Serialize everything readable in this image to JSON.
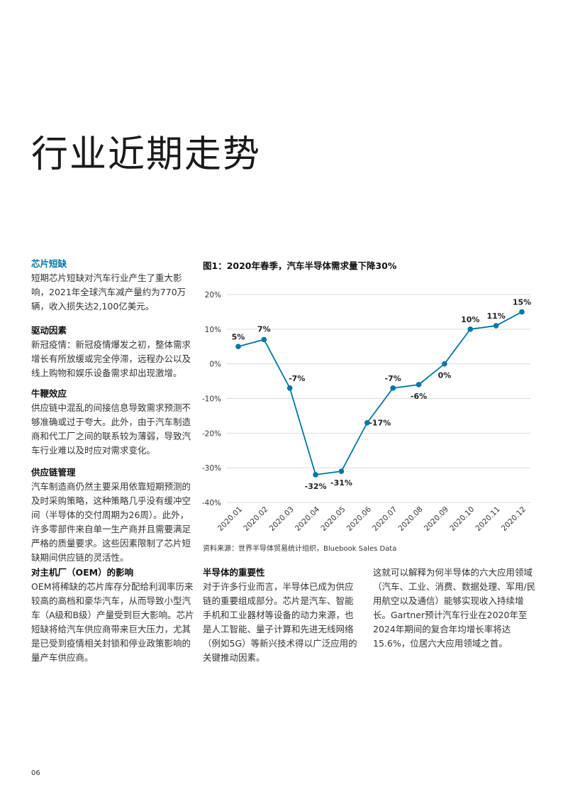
{
  "page": {
    "title": "行业近期走势",
    "page_number": "06"
  },
  "sections": {
    "chip_shortage": {
      "heading": "芯片短缺",
      "body": "短期芯片短缺对汽车行业产生了重大影响，2021年全球汽车减产量约为770万辆，收入损失达2,100亿美元。"
    },
    "drivers": {
      "heading": "驱动因素",
      "body": "新冠疫情：新冠疫情爆发之初，整体需求增长有所放缓或完全停滞，远程办公以及线上购物和娱乐设备需求却出现激增。"
    },
    "bullwhip": {
      "heading": "牛鞭效应",
      "body": "供应链中混乱的间接信息导致需求预测不够准确或过于夸大。此外，由于汽车制造商和代工厂之间的联系较为薄弱，导致汽车行业难以及时应对需求变化。"
    },
    "supply_chain": {
      "heading": "供应链管理",
      "body": "汽车制造商仍然主要采用依靠短期预测的及时采购策略，这种策略几乎没有缓冲空间（半导体的交付周期为26周）。此外，许多零部件来自单一生产商并且需要满足严格的质量要求。这些因素限制了芯片短缺期间供应链的灵活性。"
    },
    "oem_impact": {
      "heading": "对主机厂（OEM）的影响",
      "body": "OEM将稀缺的芯片库存分配给利润率历来较高的高档和豪华汽车，从而导致小型汽车（A级和B级）产量受到巨大影响。芯片短缺将给汽车供应商带来巨大压力，尤其是已受到疫情相关封锁和停业政策影响的量产车供应商。"
    },
    "importance": {
      "heading": "半导体的重要性",
      "body": "对于许多行业而言，半导体已成为供应链的重要组成部分。芯片是汽车、智能手机和工业器材等设备的动力来源，也是人工智能、量子计算和先进无线网络（例如5G）等新兴技术得以广泛应用的关键推动因素。"
    },
    "growth": {
      "body": "这就可以解释为何半导体的六大应用领域（汽车、工业、消费、数据处理、军用/民用航空以及通信）能够实现收入持续增长。Gartner预计汽车行业在2020年至2024年期间的复合年均增长率将达15.6%，位居六大应用领域之首。"
    }
  },
  "chart": {
    "title": "图1：2020年春季，汽车半导体需求量下降30%",
    "source": "资料来源：世界半导体贸易统计组织，Bluebook Sales Data"
  },
  "chart_data": {
    "type": "line",
    "title": "图1：2020年春季，汽车半导体需求量下降30%",
    "categories": [
      "2020.01",
      "2020.02",
      "2020.03",
      "2020.04",
      "2020.05",
      "2020.06",
      "2020.07",
      "2020.08",
      "2020.09",
      "2020.10",
      "2020.11",
      "2020.12"
    ],
    "values": [
      5,
      7,
      -7,
      -32,
      -31,
      -17,
      -7,
      -6,
      0,
      10,
      11,
      15
    ],
    "data_labels": [
      "5%",
      "7%",
      "-7%",
      "-32%",
      "-31%",
      "-17%",
      "-7%",
      "-6%",
      "0%",
      "10%",
      "11%",
      "15%"
    ],
    "y_ticks": [
      20,
      10,
      0,
      -10,
      -20,
      -30,
      -40
    ],
    "y_tick_labels": [
      "20%",
      "10%",
      "0%",
      "-10%",
      "-20%",
      "-30%",
      "-40%"
    ],
    "ylim": [
      -40,
      20
    ],
    "grid": true,
    "line_color": "#0076a8",
    "grid_color": "#d9d9d9"
  }
}
